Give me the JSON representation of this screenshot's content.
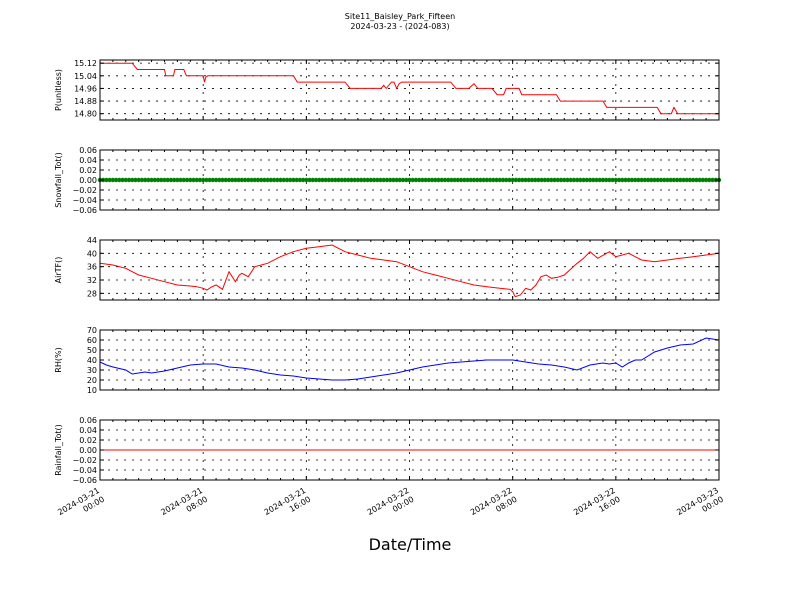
{
  "figure": {
    "title": "Site11_Baisley_Park_Fifteen",
    "subtitle": "2024-03-23 - (2024-083)",
    "xlabel": "Date/Time"
  },
  "chart_data": [
    {
      "type": "line",
      "ylabel": "P(unitless)",
      "ylim": [
        14.76,
        15.14
      ],
      "yticks": [
        "15.12",
        "15.04",
        "14.96",
        "14.88",
        "14.80"
      ],
      "ytick_values": [
        15.12,
        15.04,
        14.96,
        14.88,
        14.8
      ],
      "xlim": [
        "2024-03-21 00:00",
        "2024-03-23 00:00"
      ],
      "xtick_labels": [
        [
          "2024-03-21",
          "00:00"
        ],
        [
          "2024-03-21",
          "08:00"
        ],
        [
          "2024-03-21",
          "16:00"
        ],
        [
          "2024-03-22",
          "00:00"
        ],
        [
          "2024-03-22",
          "08:00"
        ],
        [
          "2024-03-22",
          "16:00"
        ],
        [
          "2024-03-23",
          "00:00"
        ]
      ],
      "xtick_hours": [
        0,
        8,
        16,
        24,
        32,
        40,
        48
      ],
      "grid": true,
      "series": [
        {
          "color": "#ff0000",
          "x": [
            0,
            0.5,
            0.9,
            1.5,
            2.5,
            2.9,
            5.0,
            5.1,
            5.7,
            5.8,
            6.5,
            6.7,
            6.9,
            7.7,
            8.0,
            8.1,
            8.2,
            8.35,
            8.5,
            8.6,
            15.0,
            15.3,
            15.5,
            19.0,
            19.4,
            19.8,
            21.8,
            22.0,
            22.2,
            22.6,
            22.8,
            23.0,
            23.2,
            23.4,
            24.0,
            27.2,
            27.6,
            28.6,
            29.0,
            29.3,
            29.6,
            30.4,
            30.8,
            31.3,
            31.5,
            32.5,
            32.7,
            33.1,
            35.4,
            35.7,
            36.2,
            39.0,
            39.3,
            39.6,
            40.5,
            40.8,
            41.0,
            43.2,
            43.5,
            43.9,
            44.3,
            44.5,
            44.8,
            45.0,
            46.0,
            48.0
          ],
          "y": [
            15.12,
            15.12,
            15.12,
            15.12,
            15.12,
            15.08,
            15.08,
            15.04,
            15.04,
            15.08,
            15.08,
            15.04,
            15.04,
            15.04,
            15.04,
            15.0,
            15.03,
            15.04,
            15.04,
            15.04,
            15.04,
            15.0,
            15.0,
            15.0,
            14.96,
            14.96,
            14.96,
            14.98,
            14.96,
            15.0,
            15.0,
            14.96,
            14.99,
            15.0,
            15.0,
            15.0,
            14.96,
            14.96,
            14.99,
            14.96,
            14.96,
            14.96,
            14.92,
            14.92,
            14.96,
            14.96,
            14.92,
            14.92,
            14.92,
            14.88,
            14.88,
            14.88,
            14.84,
            14.84,
            14.84,
            14.84,
            14.84,
            14.84,
            14.8,
            14.8,
            14.8,
            14.84,
            14.8,
            14.8,
            14.8,
            14.8
          ]
        }
      ]
    },
    {
      "type": "scatter",
      "ylabel": "Snowfall_Tot()",
      "ylim": [
        -0.06,
        0.06
      ],
      "yticks": [
        "0.06",
        "0.04",
        "0.02",
        "0.00",
        "−0.02",
        "−0.04",
        "−0.06"
      ],
      "ytick_values": [
        0.06,
        0.04,
        0.02,
        0.0,
        -0.02,
        -0.04,
        -0.06
      ],
      "xlim": [
        "2024-03-21 00:00",
        "2024-03-23 00:00"
      ],
      "xtick_hours": [
        0,
        8,
        16,
        24,
        32,
        40,
        48
      ],
      "grid": true,
      "series": [
        {
          "color": "#008000",
          "x_step_hours": 0.25,
          "x_start": 0,
          "x_end": 48,
          "value": 0.0
        }
      ]
    },
    {
      "type": "line",
      "ylabel": "AirTF()",
      "ylim": [
        26,
        44
      ],
      "yticks": [
        "44",
        "40",
        "36",
        "32",
        "28"
      ],
      "ytick_values": [
        44,
        40,
        36,
        32,
        28
      ],
      "xlim": [
        "2024-03-21 00:00",
        "2024-03-23 00:00"
      ],
      "xtick_hours": [
        0,
        8,
        16,
        24,
        32,
        40,
        48
      ],
      "grid": true,
      "series": [
        {
          "color": "#ff0000",
          "x": [
            0,
            1,
            2,
            2.5,
            3,
            4,
            5,
            6,
            7,
            7.5,
            8,
            8.3,
            8.6,
            9,
            9.5,
            10,
            10.5,
            10.8,
            11,
            11.5,
            12,
            12.5,
            13,
            14,
            15,
            16,
            17,
            18,
            19,
            20,
            21,
            22,
            23,
            24,
            25,
            26,
            27,
            28,
            29,
            30,
            31,
            31.8,
            32,
            32.2,
            32.6,
            33,
            33.4,
            33.8,
            34.2,
            34.6,
            35,
            35.5,
            36,
            37,
            37.5,
            38,
            38.3,
            38.6,
            39.5,
            40,
            41,
            42,
            43,
            44,
            45,
            46,
            47,
            48
          ],
          "y": [
            37,
            36.5,
            35.5,
            34.5,
            33.5,
            32.5,
            31.5,
            30.5,
            30.2,
            30.0,
            29.5,
            29.0,
            29.8,
            30.5,
            29.2,
            34.5,
            31.5,
            33.5,
            34.0,
            33.0,
            36.0,
            36.5,
            37.0,
            39.0,
            40.5,
            41.5,
            42.0,
            42.5,
            40.5,
            39.5,
            38.5,
            38.0,
            37.5,
            36.0,
            34.5,
            33.5,
            32.5,
            31.5,
            30.5,
            30.0,
            29.5,
            29.2,
            28.5,
            27.0,
            27.5,
            29.5,
            29.0,
            30.5,
            33.0,
            33.5,
            32.5,
            32.8,
            33.5,
            37.0,
            38.5,
            40.5,
            39.5,
            38.5,
            40.5,
            39.0,
            40.0,
            38.0,
            37.5,
            38.0,
            38.5,
            39.0,
            39.5,
            40.0
          ]
        }
      ]
    },
    {
      "type": "line",
      "ylabel": "RH(%)",
      "ylim": [
        10,
        70
      ],
      "yticks": [
        "70",
        "60",
        "50",
        "40",
        "30",
        "20",
        "10"
      ],
      "ytick_values": [
        70,
        60,
        50,
        40,
        30,
        20,
        10
      ],
      "xlim": [
        "2024-03-21 00:00",
        "2024-03-23 00:00"
      ],
      "xtick_hours": [
        0,
        8,
        16,
        24,
        32,
        40,
        48
      ],
      "grid": true,
      "series": [
        {
          "color": "#0000ff",
          "x": [
            0,
            0.5,
            1,
            2,
            2.5,
            3,
            3.5,
            4,
            5,
            6,
            7,
            8,
            9,
            10,
            11,
            12,
            13,
            14,
            15,
            16,
            17,
            18,
            19,
            20,
            21,
            22,
            23,
            24,
            25,
            26,
            27,
            28,
            29,
            30,
            31,
            32,
            33,
            34,
            35,
            36,
            37,
            38,
            39,
            39.5,
            40,
            40.5,
            41,
            41.5,
            42,
            43,
            44,
            45,
            46,
            47,
            48
          ],
          "y": [
            38,
            35,
            33,
            30,
            26,
            27,
            28,
            27,
            29,
            32,
            35,
            36,
            36,
            33,
            32,
            30,
            27,
            25,
            24,
            22,
            21,
            20,
            20,
            21,
            23,
            25,
            27,
            30,
            33,
            35,
            37,
            38,
            39,
            40,
            40,
            40,
            38,
            36,
            35,
            33,
            30,
            35,
            37,
            36,
            37,
            33,
            37,
            40,
            40,
            48,
            52,
            55,
            56,
            62,
            60
          ]
        }
      ]
    },
    {
      "type": "line",
      "ylabel": "Rainfall_Tot()",
      "ylim": [
        -0.06,
        0.06
      ],
      "yticks": [
        "0.06",
        "0.04",
        "0.02",
        "0.00",
        "−0.02",
        "−0.04",
        "−0.06"
      ],
      "ytick_values": [
        0.06,
        0.04,
        0.02,
        0.0,
        -0.02,
        -0.04,
        -0.06
      ],
      "xlim": [
        "2024-03-21 00:00",
        "2024-03-23 00:00"
      ],
      "xtick_hours": [
        0,
        8,
        16,
        24,
        32,
        40,
        48
      ],
      "grid": true,
      "series": [
        {
          "color": "#ff0000",
          "x": [
            0,
            48
          ],
          "y": [
            0.0,
            0.0
          ]
        }
      ]
    }
  ]
}
